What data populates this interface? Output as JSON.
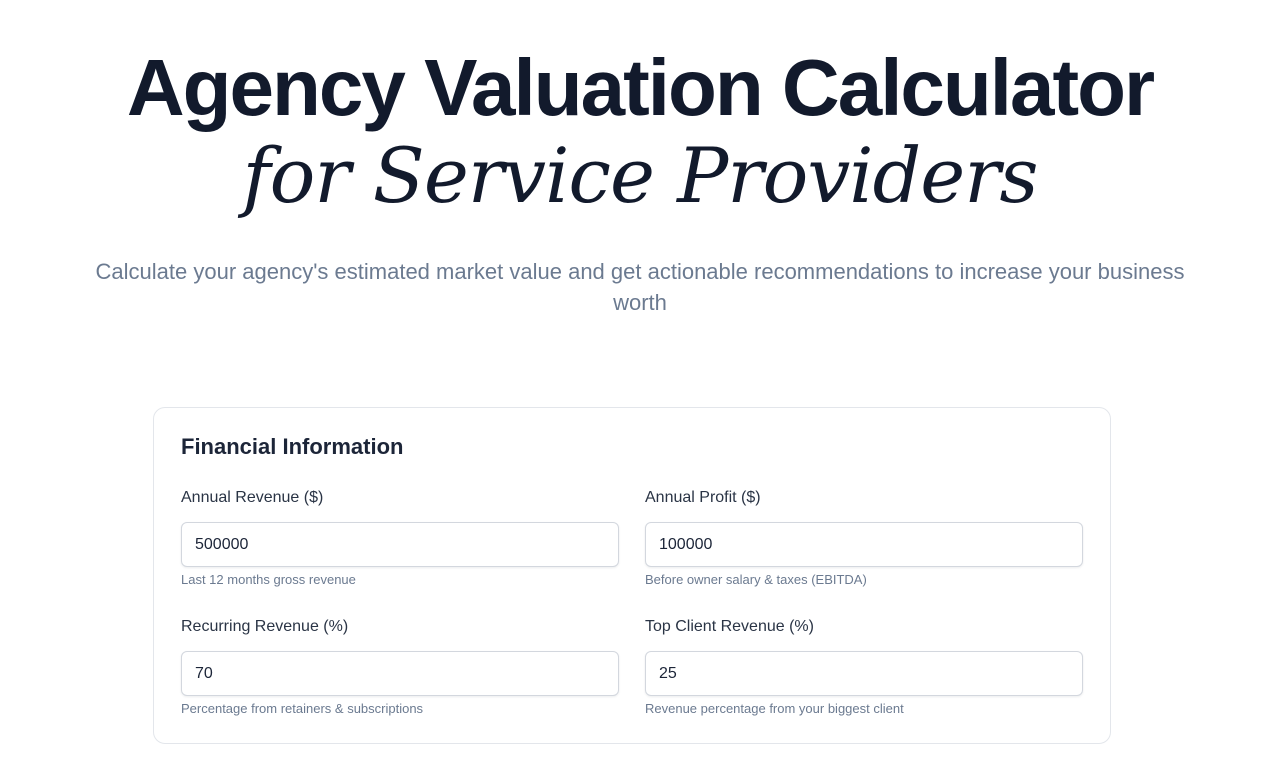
{
  "hero": {
    "title_line1": "Agency Valuation Calculator",
    "title_line2": "for Service Providers",
    "subtitle": "Calculate your agency's estimated market value and get actionable recommendations to increase your business worth"
  },
  "financial_info": {
    "title": "Financial Information",
    "fields": [
      {
        "label": "Annual Revenue ($)",
        "value": "500000",
        "hint": "Last 12 months gross revenue"
      },
      {
        "label": "Annual Profit ($)",
        "value": "100000",
        "hint": "Before owner salary & taxes (EBITDA)"
      },
      {
        "label": "Recurring Revenue (%)",
        "value": "70",
        "hint": "Percentage from retainers & subscriptions"
      },
      {
        "label": "Top Client Revenue (%)",
        "value": "25",
        "hint": "Revenue percentage from your biggest client"
      }
    ]
  },
  "colors": {
    "title": "#121a2c",
    "subtitle": "#6b7a90",
    "card_border": "#e3e6eb",
    "input_border": "#d3d7de"
  }
}
